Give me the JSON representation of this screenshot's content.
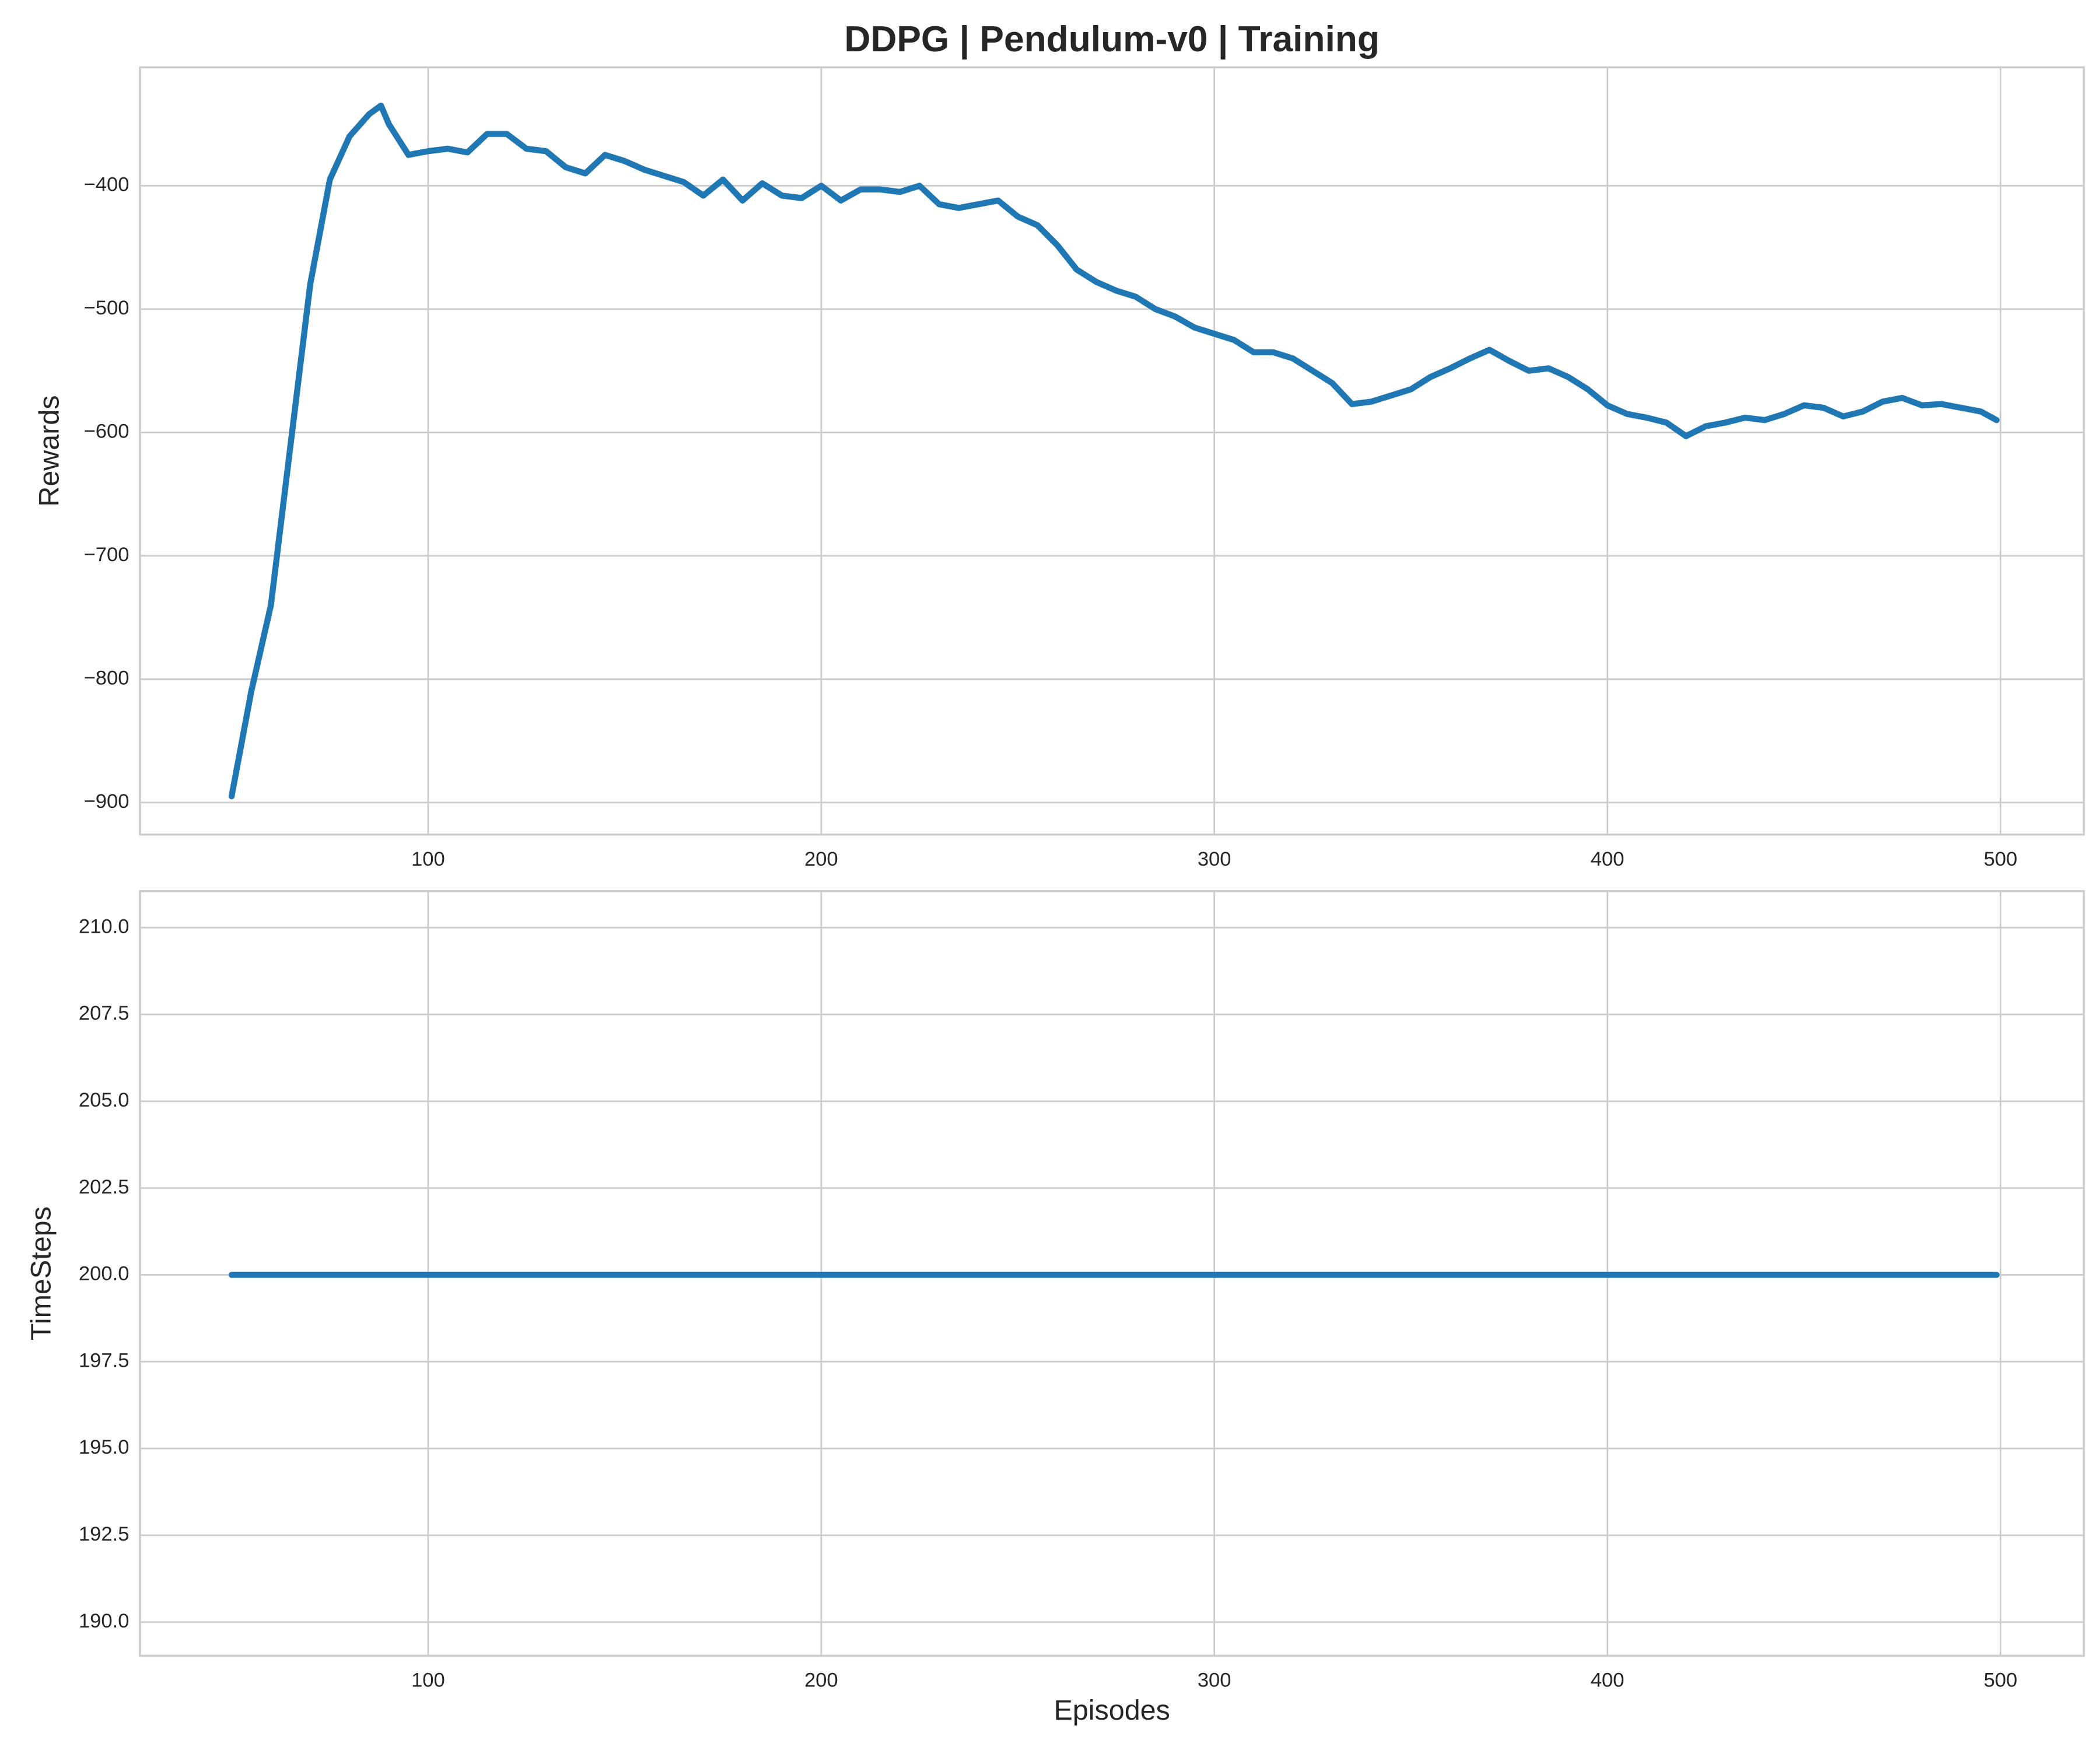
{
  "chart_data": [
    {
      "type": "line",
      "title": "DDPG | Pendulum-v0 | Training",
      "ylabel": "Rewards",
      "x": [
        50,
        55,
        60,
        65,
        70,
        75,
        80,
        85,
        88,
        90,
        95,
        100,
        105,
        110,
        115,
        120,
        125,
        130,
        135,
        140,
        145,
        150,
        155,
        160,
        165,
        170,
        175,
        180,
        185,
        190,
        195,
        200,
        205,
        210,
        215,
        220,
        225,
        230,
        235,
        240,
        245,
        250,
        255,
        260,
        265,
        270,
        275,
        280,
        285,
        290,
        295,
        300,
        305,
        310,
        315,
        320,
        325,
        330,
        335,
        340,
        345,
        350,
        355,
        360,
        365,
        370,
        375,
        380,
        385,
        390,
        395,
        400,
        405,
        410,
        415,
        420,
        425,
        430,
        435,
        440,
        445,
        450,
        455,
        460,
        465,
        470,
        475,
        480,
        485,
        490,
        495,
        499
      ],
      "series": [
        {
          "name": "Rewards",
          "color": "#1f77b4",
          "values": [
            -895,
            -810,
            -740,
            -610,
            -480,
            -395,
            -360,
            -342,
            -335,
            -350,
            -375,
            -372,
            -370,
            -373,
            -358,
            -358,
            -370,
            -372,
            -385,
            -390,
            -375,
            -380,
            -387,
            -392,
            -397,
            -408,
            -395,
            -412,
            -398,
            -408,
            -410,
            -400,
            -412,
            -403,
            -403,
            -405,
            -400,
            -415,
            -418,
            -415,
            -412,
            -425,
            -432,
            -448,
            -468,
            -478,
            -485,
            -490,
            -500,
            -506,
            -515,
            -520,
            -525,
            -535,
            -535,
            -540,
            -550,
            -560,
            -577,
            -575,
            -570,
            -565,
            -555,
            -548,
            -540,
            -533,
            -542,
            -550,
            -548,
            -555,
            -565,
            -578,
            -585,
            -588,
            -592,
            -603,
            -595,
            -592,
            -588,
            -590,
            -585,
            -578,
            -580,
            -587,
            -583,
            -575,
            -572,
            -578,
            -577,
            -580,
            -583,
            -590
          ]
        }
      ],
      "xlim": [
        26.7,
        521.2
      ],
      "xticks": [
        100,
        200,
        300,
        400,
        500
      ],
      "ylim": [
        -926,
        -304
      ],
      "yticks": [
        -900,
        -800,
        -700,
        -600,
        -500,
        -400
      ],
      "grid": true
    },
    {
      "type": "line",
      "ylabel": "TimeSteps",
      "xlabel": "Episodes",
      "x": [
        50,
        499
      ],
      "series": [
        {
          "name": "TimeSteps",
          "color": "#1f77b4",
          "values": [
            200,
            200
          ]
        }
      ],
      "xlim": [
        26.7,
        521.2
      ],
      "xticks": [
        100,
        200,
        300,
        400,
        500
      ],
      "ylim": [
        189.03,
        211.05
      ],
      "yticks": [
        {
          "value": 190,
          "label": "190.0"
        },
        192.5,
        {
          "value": 195,
          "label": "195.0"
        },
        197.5,
        {
          "value": 200,
          "label": "200.0"
        },
        202.5,
        {
          "value": 205,
          "label": "205.0"
        },
        207.5,
        {
          "value": 210,
          "label": "210.0"
        }
      ],
      "grid": true
    }
  ]
}
